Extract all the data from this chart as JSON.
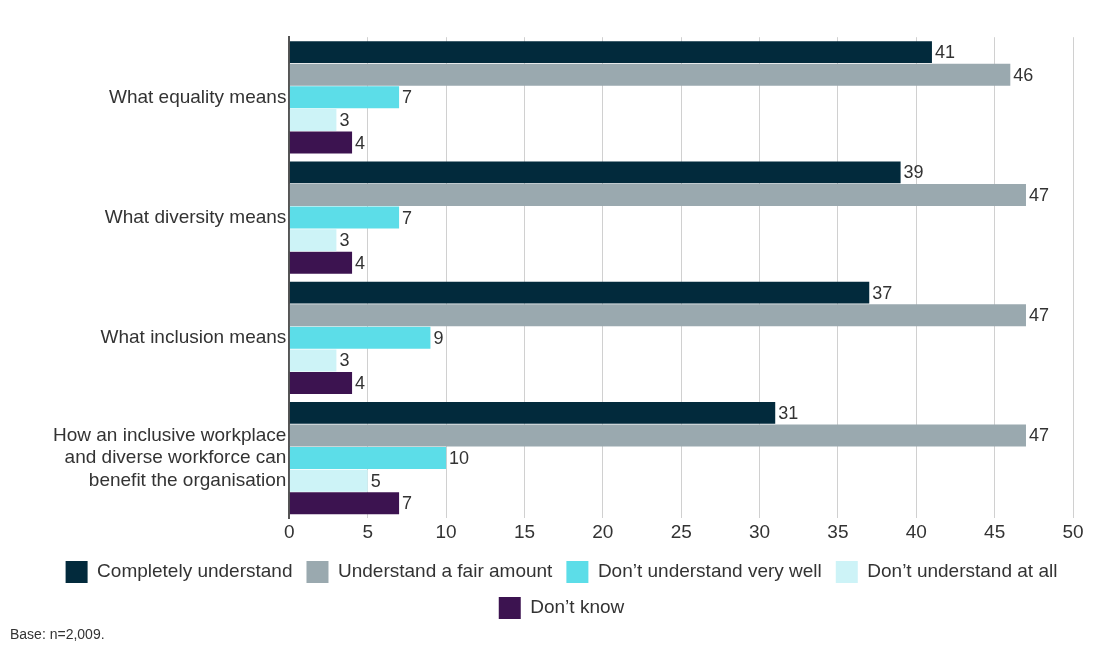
{
  "chart_data": {
    "type": "bar",
    "orientation": "horizontal",
    "categories": [
      "What equality means",
      "What diversity means",
      "What inclusion means",
      "How an inclusive workplace and diverse workforce can benefit the organisation"
    ],
    "series": [
      {
        "name": "Completely understand",
        "color": "#022a3c",
        "values": [
          41,
          39,
          37,
          31
        ]
      },
      {
        "name": "Understand a fair amount",
        "color": "#9aa9af",
        "values": [
          46,
          47,
          47,
          47
        ]
      },
      {
        "name": "Don’t understand very well",
        "color": "#5cdde8",
        "values": [
          7,
          7,
          9,
          10
        ]
      },
      {
        "name": "Don’t understand at all",
        "color": "#cdf3f7",
        "values": [
          3,
          3,
          3,
          5
        ]
      },
      {
        "name": "Don’t know",
        "color": "#3c1350",
        "values": [
          4,
          4,
          4,
          7
        ]
      }
    ],
    "xlim": [
      0,
      50
    ],
    "xticks": [
      0,
      5,
      10,
      15,
      20,
      25,
      30,
      35,
      40,
      45,
      50
    ],
    "grid": "x",
    "legend": "bottom",
    "data_labels": true,
    "annotations": [
      "Base: n=2,009."
    ]
  }
}
